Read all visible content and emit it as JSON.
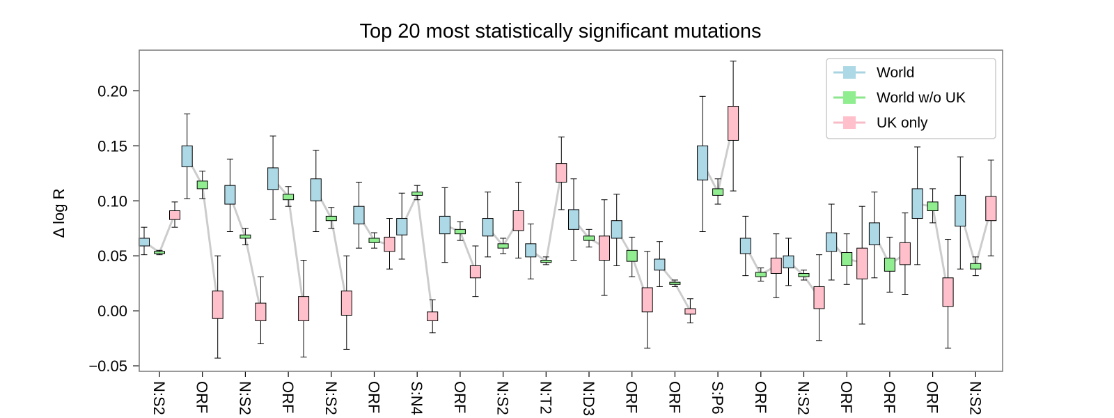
{
  "chart_data": {
    "type": "box-and-whisker",
    "title": "Top 20 most statistically significant mutations",
    "ylabel": "Δ log R",
    "xlabel": "",
    "ylim": [
      -0.055,
      0.237
    ],
    "yticks": [
      -0.05,
      0.0,
      0.05,
      0.1,
      0.15,
      0.2
    ],
    "ytick_labels": [
      "−0.05",
      "0.00",
      "0.05",
      "0.10",
      "0.15",
      "0.20"
    ],
    "legend_position": "top-right",
    "categories": [
      "N:S2",
      "ORF",
      "N:S2",
      "ORF",
      "N:S2",
      "ORF",
      "S:N4",
      "ORF",
      "N:S2",
      "N:T2",
      "N:D3",
      "ORF",
      "ORF",
      "S:P6",
      "ORF",
      "N:S2",
      "ORF",
      "ORF",
      "ORF",
      "N:S2"
    ],
    "series": [
      {
        "name": "World",
        "color": "#add8e6",
        "line_color": "#a8d4e2",
        "median": [
          0.063,
          0.14,
          0.105,
          0.12,
          0.11,
          0.087,
          0.076,
          0.078,
          0.076,
          0.055,
          0.083,
          0.074,
          0.042,
          0.135,
          0.059,
          0.045,
          0.063,
          0.07,
          0.097,
          0.091
        ],
        "q1": [
          0.059,
          0.131,
          0.097,
          0.11,
          0.1,
          0.079,
          0.069,
          0.07,
          0.068,
          0.049,
          0.074,
          0.066,
          0.037,
          0.119,
          0.052,
          0.039,
          0.054,
          0.06,
          0.084,
          0.077
        ],
        "q3": [
          0.066,
          0.15,
          0.114,
          0.13,
          0.12,
          0.095,
          0.084,
          0.086,
          0.084,
          0.061,
          0.092,
          0.082,
          0.047,
          0.15,
          0.066,
          0.05,
          0.071,
          0.08,
          0.111,
          0.105
        ],
        "whisker_low": [
          0.051,
          0.102,
          0.072,
          0.083,
          0.072,
          0.057,
          0.047,
          0.044,
          0.049,
          0.029,
          0.046,
          0.041,
          0.022,
          0.072,
          0.032,
          0.023,
          0.028,
          0.03,
          0.042,
          0.038
        ],
        "whisker_high": [
          0.076,
          0.179,
          0.138,
          0.159,
          0.146,
          0.117,
          0.107,
          0.112,
          0.108,
          0.079,
          0.12,
          0.106,
          0.063,
          0.195,
          0.086,
          0.066,
          0.097,
          0.108,
          0.149,
          0.14
        ]
      },
      {
        "name": "World w/o UK",
        "color": "#90ee90",
        "line_color": "#8ce68c",
        "median": [
          0.053,
          0.114,
          0.067,
          0.104,
          0.084,
          0.064,
          0.106,
          0.072,
          0.059,
          0.045,
          0.066,
          0.05,
          0.025,
          0.108,
          0.033,
          0.032,
          0.047,
          0.042,
          0.095,
          0.041
        ],
        "q1": [
          0.052,
          0.111,
          0.066,
          0.101,
          0.082,
          0.062,
          0.105,
          0.07,
          0.057,
          0.044,
          0.064,
          0.045,
          0.024,
          0.105,
          0.031,
          0.031,
          0.041,
          0.036,
          0.091,
          0.038
        ],
        "q3": [
          0.054,
          0.118,
          0.069,
          0.106,
          0.086,
          0.066,
          0.108,
          0.074,
          0.061,
          0.046,
          0.068,
          0.055,
          0.026,
          0.111,
          0.035,
          0.034,
          0.053,
          0.048,
          0.099,
          0.043
        ],
        "whisker_low": [
          0.051,
          0.102,
          0.06,
          0.095,
          0.075,
          0.057,
          0.101,
          0.064,
          0.052,
          0.042,
          0.058,
          0.031,
          0.022,
          0.097,
          0.027,
          0.028,
          0.024,
          0.017,
          0.08,
          0.032
        ],
        "whisker_high": [
          0.055,
          0.127,
          0.075,
          0.113,
          0.094,
          0.071,
          0.114,
          0.081,
          0.066,
          0.049,
          0.074,
          0.067,
          0.028,
          0.12,
          0.039,
          0.037,
          0.07,
          0.067,
          0.111,
          0.049
        ]
      },
      {
        "name": "UK only",
        "color": "#ffc0cb",
        "line_color": "#f7bcc7",
        "median": [
          0.088,
          0.006,
          0.0,
          0.003,
          0.008,
          0.06,
          -0.004,
          0.036,
          0.082,
          0.126,
          0.058,
          0.01,
          0.0,
          0.17,
          0.041,
          0.012,
          0.044,
          0.052,
          0.016,
          0.093
        ],
        "q1": [
          0.083,
          -0.007,
          -0.009,
          -0.009,
          -0.004,
          0.054,
          -0.009,
          0.03,
          0.073,
          0.117,
          0.046,
          -0.001,
          -0.003,
          0.155,
          0.034,
          0.002,
          0.029,
          0.042,
          0.004,
          0.082
        ],
        "q3": [
          0.091,
          0.018,
          0.007,
          0.013,
          0.018,
          0.067,
          -0.001,
          0.041,
          0.091,
          0.134,
          0.068,
          0.021,
          0.002,
          0.186,
          0.048,
          0.022,
          0.057,
          0.062,
          0.03,
          0.104
        ],
        "whisker_low": [
          0.076,
          -0.043,
          -0.03,
          -0.042,
          -0.035,
          0.038,
          -0.02,
          0.013,
          0.048,
          0.092,
          0.014,
          -0.034,
          -0.011,
          0.109,
          0.012,
          -0.027,
          -0.012,
          0.015,
          -0.034,
          0.05
        ],
        "whisker_high": [
          0.099,
          0.05,
          0.031,
          0.046,
          0.05,
          0.084,
          0.01,
          0.059,
          0.117,
          0.158,
          0.101,
          0.054,
          0.011,
          0.227,
          0.07,
          0.051,
          0.095,
          0.089,
          0.065,
          0.137
        ]
      }
    ]
  }
}
